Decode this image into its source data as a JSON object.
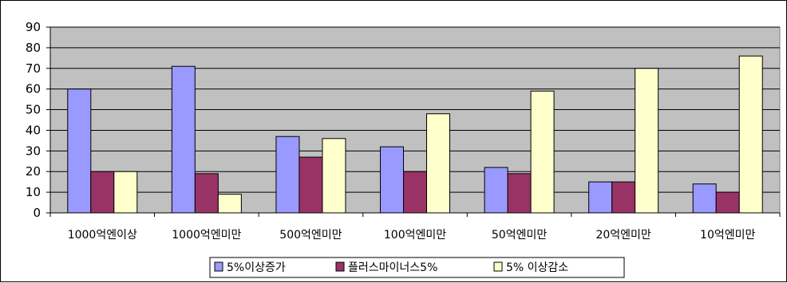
{
  "chart_data": {
    "type": "bar",
    "title": "",
    "xlabel": "",
    "ylabel": "",
    "ylim": [
      0,
      90
    ],
    "ytick_step": 10,
    "grid": true,
    "legend_position": "bottom",
    "categories": [
      "1000억엔이상",
      "1000억엔미만",
      "500억엔미만",
      "100억엔미만",
      "50억엔미만",
      "20억엔미만",
      "10억엔미만"
    ],
    "series": [
      {
        "name": "5%이상증가",
        "color": "#9999ff",
        "values": [
          60,
          71,
          37,
          32,
          22,
          15,
          14
        ]
      },
      {
        "name": "플러스마이너스5%",
        "color": "#993366",
        "values": [
          20,
          19,
          27,
          20,
          19,
          15,
          10
        ]
      },
      {
        "name": "5% 이상감소",
        "color": "#ffffcc",
        "values": [
          20,
          9,
          36,
          48,
          59,
          70,
          76
        ]
      }
    ],
    "plot_background": "#c0c0c0"
  }
}
